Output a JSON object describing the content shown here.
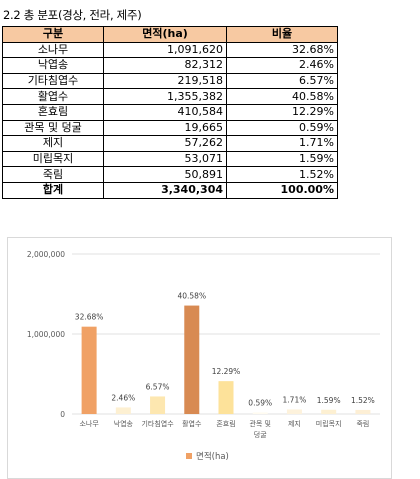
{
  "heading": "2.2 총 분포(경상, 전라, 제주)",
  "table": {
    "headers": [
      "구분",
      "면적(ha)",
      "비율"
    ],
    "rows": [
      {
        "name": "소나무",
        "area": "1,091,620",
        "ratio": "32.68%"
      },
      {
        "name": "낙엽송",
        "area": "82,312",
        "ratio": "2.46%"
      },
      {
        "name": "기타침엽수",
        "area": "219,518",
        "ratio": "6.57%"
      },
      {
        "name": "활엽수",
        "area": "1,355,382",
        "ratio": "40.58%"
      },
      {
        "name": "혼효림",
        "area": "410,584",
        "ratio": "12.29%"
      },
      {
        "name": "관목 및 덩굴",
        "area": "19,665",
        "ratio": "0.59%"
      },
      {
        "name": "제지",
        "area": "57,262",
        "ratio": "1.71%"
      },
      {
        "name": "미립목지",
        "area": "53,071",
        "ratio": "1.59%"
      },
      {
        "name": "죽림",
        "area": "50,891",
        "ratio": "1.52%"
      }
    ],
    "total": {
      "name": "합계",
      "area": "3,340,304",
      "ratio": "100.00%"
    }
  },
  "chart_data": {
    "type": "bar",
    "categories": [
      "소나무",
      "낙엽송",
      "기타침엽수",
      "활엽수",
      "혼효림",
      "관목 및 덩굴",
      "제지",
      "미립목지",
      "죽림"
    ],
    "category_lines": [
      [
        "소나무"
      ],
      [
        "낙엽송"
      ],
      [
        "기타침엽수"
      ],
      [
        "활엽수"
      ],
      [
        "혼효림"
      ],
      [
        "관목 및",
        "덩굴"
      ],
      [
        "제지"
      ],
      [
        "미립목지"
      ],
      [
        "죽림"
      ]
    ],
    "values": [
      1091620,
      82312,
      219518,
      1355382,
      410584,
      19665,
      57262,
      53071,
      50891
    ],
    "data_labels": [
      "32.68%",
      "2.46%",
      "6.57%",
      "40.58%",
      "12.29%",
      "0.59%",
      "1.71%",
      "1.59%",
      "1.52%"
    ],
    "bar_colors": [
      "#f0a165",
      "#fdf0d2",
      "#fde7b0",
      "#d88a52",
      "#fde29a",
      "#fffbf0",
      "#fdf2dc",
      "#fdf0d2",
      "#fdefd5"
    ],
    "series_name": "면적(ha)",
    "legend_color": "#f0a165",
    "legend_position": "bottom",
    "ylim": [
      0,
      2000000
    ],
    "yticks": [
      0,
      1000000,
      2000000
    ],
    "ytick_labels": [
      "0",
      "1,000,000",
      "2,000,000"
    ],
    "gridlines": true
  }
}
